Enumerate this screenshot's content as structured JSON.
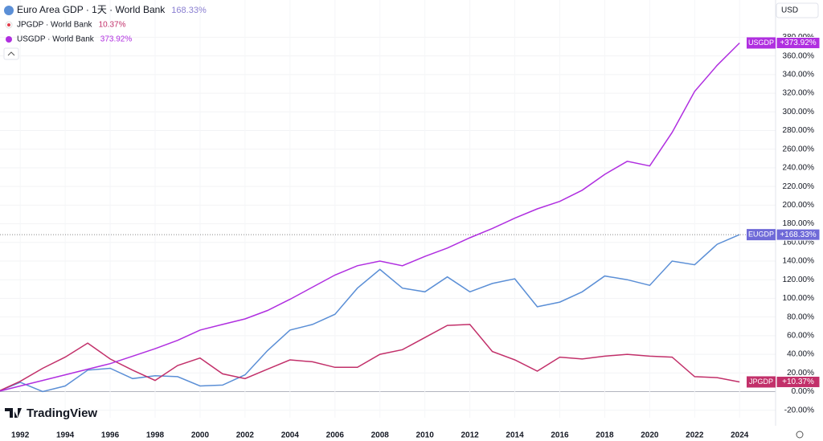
{
  "chart_data": {
    "type": "line",
    "currency": "USD",
    "brand": "TradingView",
    "x": [
      1991,
      1992,
      1993,
      1994,
      1995,
      1996,
      1997,
      1998,
      1999,
      2000,
      2001,
      2002,
      2003,
      2004,
      2005,
      2006,
      2007,
      2008,
      2009,
      2010,
      2011,
      2012,
      2013,
      2014,
      2015,
      2016,
      2017,
      2018,
      2019,
      2020,
      2021,
      2022,
      2023,
      2024
    ],
    "xlim": [
      1991.1,
      2025.6
    ],
    "xticks": [
      1992,
      1994,
      1996,
      1998,
      2000,
      2002,
      2004,
      2006,
      2008,
      2010,
      2012,
      2014,
      2016,
      2018,
      2020,
      2022,
      2024
    ],
    "ylim": [
      -28,
      420
    ],
    "yticks": [
      {
        "value": -20,
        "label": "-20.00%"
      },
      {
        "value": 0,
        "label": "0.00%"
      },
      {
        "value": 20,
        "label": "20.00%"
      },
      {
        "value": 40,
        "label": "40.00%"
      },
      {
        "value": 60,
        "label": "60.00%"
      },
      {
        "value": 80,
        "label": "80.00%"
      },
      {
        "value": 100,
        "label": "100.00%"
      },
      {
        "value": 120,
        "label": "120.00%"
      },
      {
        "value": 140,
        "label": "140.00%"
      },
      {
        "value": 160,
        "label": "160.00%"
      },
      {
        "value": 180,
        "label": "180.00%"
      },
      {
        "value": 200,
        "label": "200.00%"
      },
      {
        "value": 220,
        "label": "220.00%"
      },
      {
        "value": 240,
        "label": "240.00%"
      },
      {
        "value": 260,
        "label": "260.00%"
      },
      {
        "value": 280,
        "label": "280.00%"
      },
      {
        "value": 300,
        "label": "300.00%"
      },
      {
        "value": 320,
        "label": "320.00%"
      },
      {
        "value": 340,
        "label": "340.00%"
      },
      {
        "value": 360,
        "label": "360.00%"
      },
      {
        "value": 380,
        "label": "380.00%"
      }
    ],
    "grid": true,
    "series": [
      {
        "name": "Euro Area GDP · 1天 · World Bank",
        "tag": "EUGDP",
        "legend_value": "168.33%",
        "last_label": "+168.33%",
        "color": "#5b8fd6",
        "tag_color": "#6f6ad8",
        "legend_color": "#8a7fd1",
        "values": [
          0,
          10,
          0,
          6,
          23,
          25,
          14,
          17,
          16,
          6,
          7,
          18,
          44,
          66,
          72,
          83,
          111,
          131,
          111,
          107,
          123,
          107,
          116,
          121,
          91,
          96,
          107,
          124,
          120,
          114,
          140,
          136,
          158,
          168.33
        ]
      },
      {
        "name": "JPGDP · World Bank",
        "tag": "JPGDP",
        "legend_value": "10.37%",
        "last_label": "+10.37%",
        "color": "#c2306a",
        "tag_color": "#c2306a",
        "legend_color": "#c2306a",
        "values": [
          0,
          11,
          25,
          37,
          52,
          35,
          23,
          12,
          28,
          36,
          19,
          14,
          24,
          34,
          32,
          26,
          26,
          40,
          45,
          58,
          71,
          72,
          43,
          34,
          22,
          37,
          35,
          38,
          40,
          38,
          37,
          16,
          15,
          10.37
        ]
      },
      {
        "name": "USGDP · World Bank",
        "tag": "USGDP",
        "legend_value": "373.92%",
        "last_label": "+373.92%",
        "color": "#b02fe0",
        "tag_color": "#b02fe0",
        "legend_color": "#b02fe0",
        "values": [
          0,
          6,
          12,
          18,
          24,
          30,
          38,
          46,
          55,
          66,
          72,
          78,
          87,
          99,
          112,
          125,
          135,
          140,
          135,
          145,
          154,
          165,
          175,
          186,
          196,
          204,
          216,
          233,
          247,
          242,
          278,
          322,
          350,
          373.92
        ]
      }
    ]
  }
}
